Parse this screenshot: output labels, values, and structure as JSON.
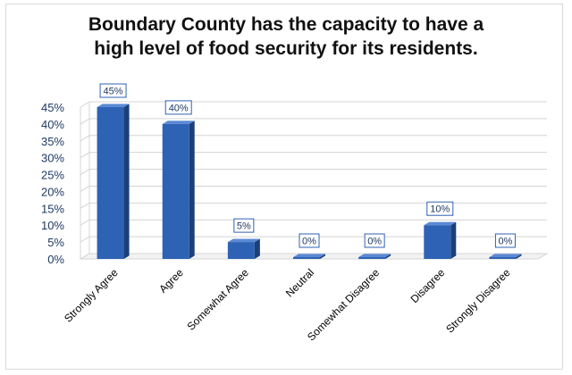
{
  "chart_data": {
    "type": "bar",
    "title_line1": "Boundary County has the capacity to have a",
    "title_line2": "high level of food security for its residents.",
    "categories": [
      "Strongly Agree",
      "Agree",
      "Somewhat Agree",
      "Neutral",
      "Somewhat Disagree",
      "Disagree",
      "Strongly Disagree"
    ],
    "values": [
      45,
      40,
      5,
      0,
      0,
      10,
      0
    ],
    "data_labels": [
      "45%",
      "40%",
      "5%",
      "0%",
      "0%",
      "10%",
      "0%"
    ],
    "y_ticks": [
      "0%",
      "5%",
      "10%",
      "15%",
      "20%",
      "25%",
      "30%",
      "35%",
      "40%",
      "45%"
    ],
    "ylim": [
      0,
      45
    ],
    "grid": true,
    "bar_color": "#2e62b4",
    "bar_side_color": "#1c3f78",
    "bar_top_color": "#5b8ad4",
    "label_border_color": "#2e62b4"
  }
}
